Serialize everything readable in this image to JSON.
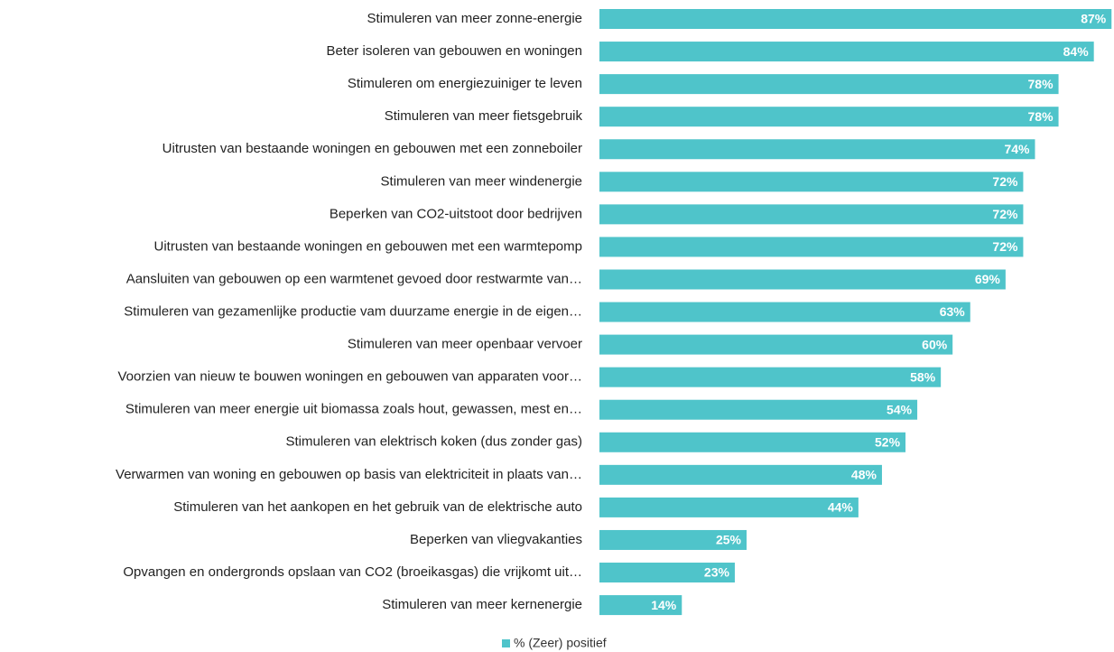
{
  "chart_data": {
    "type": "bar",
    "orientation": "horizontal",
    "categories": [
      "Stimuleren van meer zonne-energie",
      "Beter isoleren van gebouwen en woningen",
      "Stimuleren om energiezuiniger te leven",
      "Stimuleren van meer fietsgebruik",
      "Uitrusten van bestaande woningen en gebouwen met een zonneboiler",
      "Stimuleren van meer windenergie",
      "Beperken van CO2-uitstoot door bedrijven",
      "Uitrusten van bestaande woningen en gebouwen met een warmtepomp",
      "Aansluiten van gebouwen op een warmtenet gevoed door restwarmte van…",
      "Stimuleren van gezamenlijke productie vam duurzame energie in de eigen…",
      "Stimuleren van meer openbaar vervoer",
      "Voorzien van nieuw te bouwen woningen en gebouwen van apparaten voor…",
      "Stimuleren van meer energie uit biomassa zoals hout, gewassen, mest en…",
      "Stimuleren van elektrisch koken (dus zonder gas)",
      "Verwarmen van woning en gebouwen op basis van elektriciteit in plaats van…",
      "Stimuleren van het aankopen en het gebruik van de elektrische auto",
      "Beperken van vliegvakanties",
      "Opvangen en ondergronds opslaan van CO2 (broeikasgas) die vrijkomt uit…",
      "Stimuleren van meer kernenergie"
    ],
    "series": [
      {
        "name": "% (Zeer) positief",
        "color": "#4fc4ca",
        "values": [
          87,
          84,
          78,
          78,
          74,
          72,
          72,
          72,
          69,
          63,
          60,
          58,
          54,
          52,
          48,
          44,
          25,
          23,
          14
        ],
        "value_labels": [
          "87%",
          "84%",
          "78%",
          "78%",
          "74%",
          "72%",
          "72%",
          "72%",
          "69%",
          "63%",
          "60%",
          "58%",
          "54%",
          "52%",
          "48%",
          "44%",
          "25%",
          "23%",
          "14%"
        ]
      }
    ],
    "xlim": [
      0,
      100
    ],
    "legend": "bottom"
  }
}
